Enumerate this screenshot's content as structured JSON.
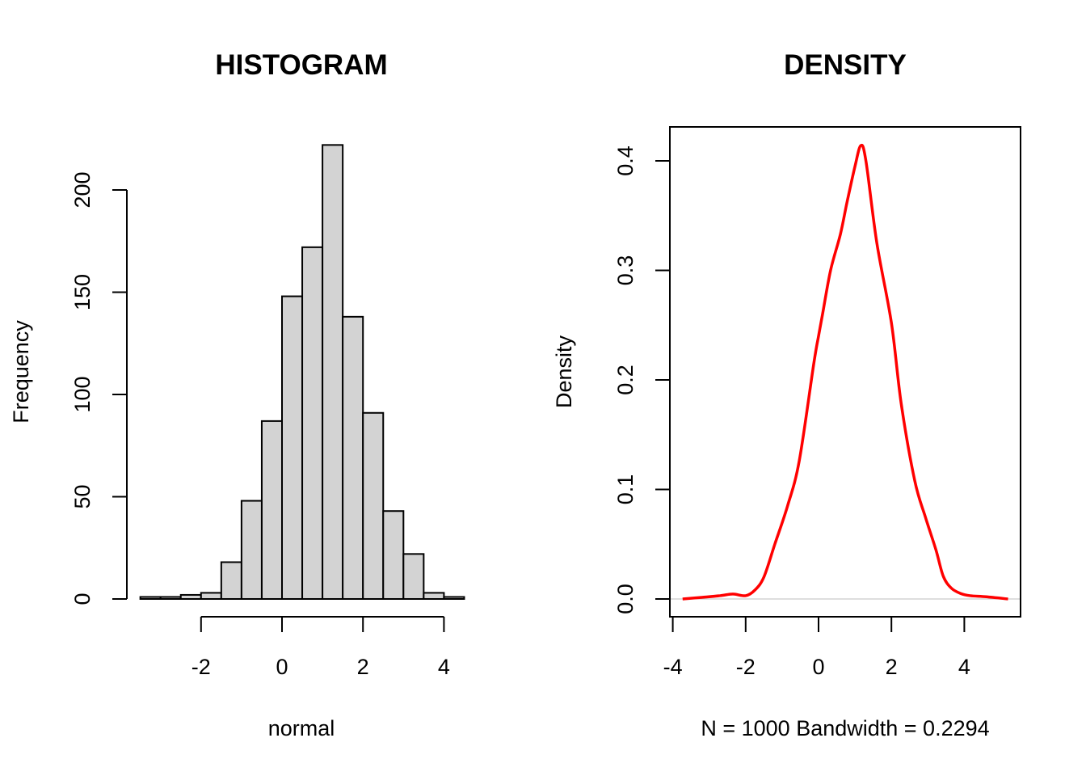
{
  "chart_data": [
    {
      "type": "bar",
      "title": "HISTOGRAM",
      "xlabel": "normal",
      "ylabel": "Frequency",
      "bin_edges": [
        -3.5,
        -3.0,
        -2.5,
        -2.0,
        -1.5,
        -1.0,
        -0.5,
        0.0,
        0.5,
        1.0,
        1.5,
        2.0,
        2.5,
        3.0,
        3.5,
        4.0,
        4.5
      ],
      "values": [
        1,
        1,
        2,
        3,
        18,
        48,
        87,
        148,
        172,
        222,
        138,
        91,
        43,
        22,
        3,
        1
      ],
      "xticks": [
        -2,
        0,
        2,
        4
      ],
      "xtick_labels": [
        "-2",
        "0",
        "2",
        "4"
      ],
      "yticks": [
        0,
        50,
        100,
        150,
        200
      ],
      "ytick_labels": [
        "0",
        "50",
        "100",
        "150",
        "200"
      ],
      "bar_fill": "#d3d3d3",
      "bar_stroke": "#000000",
      "grid": false
    },
    {
      "type": "line",
      "title": "DENSITY",
      "xlabel": "N = 1000   Bandwidth = 0.2294",
      "ylabel": "Density",
      "xlim": [
        -4.36,
        5.3
      ],
      "ylim": [
        -0.016,
        0.431
      ],
      "xticks": [
        -4,
        -2,
        0,
        2,
        4
      ],
      "xtick_labels": [
        "-4",
        "-2",
        "0",
        "2",
        "4"
      ],
      "yticks": [
        0.0,
        0.1,
        0.2,
        0.3,
        0.4
      ],
      "ytick_labels": [
        "0.0",
        "0.1",
        "0.2",
        "0.3",
        "0.4"
      ],
      "line_color": "#ff0000",
      "zero_line_color": "#bebebe",
      "grid": false,
      "x": [
        -3.73,
        -3.2,
        -2.7,
        -2.35,
        -2.0,
        -1.75,
        -1.5,
        -1.2,
        -0.85,
        -0.53,
        -0.13,
        0.0,
        0.11,
        0.33,
        0.6,
        0.78,
        1.0,
        1.16,
        1.3,
        1.6,
        2.0,
        2.27,
        2.64,
        2.93,
        3.22,
        3.42,
        3.64,
        3.9,
        4.16,
        4.6,
        5.2
      ],
      "y": [
        0.0,
        0.0015,
        0.003,
        0.0045,
        0.003,
        0.008,
        0.02,
        0.05,
        0.085,
        0.126,
        0.215,
        0.24,
        0.26,
        0.3,
        0.333,
        0.362,
        0.395,
        0.414,
        0.4,
        0.325,
        0.252,
        0.178,
        0.108,
        0.075,
        0.045,
        0.021,
        0.01,
        0.005,
        0.003,
        0.002,
        0.0
      ]
    }
  ]
}
